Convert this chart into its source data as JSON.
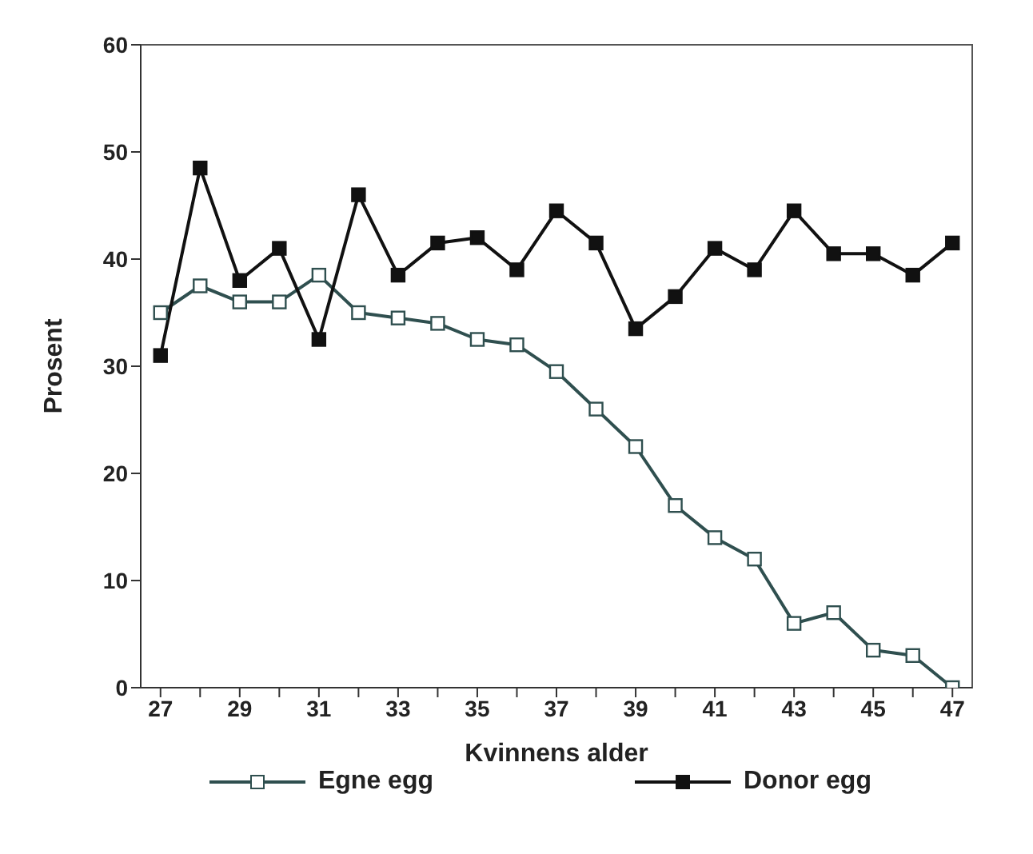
{
  "chart_data": {
    "type": "line",
    "xlabel": "Kvinnens alder",
    "ylabel": "Prosent",
    "x": [
      27,
      28,
      29,
      30,
      31,
      32,
      33,
      34,
      35,
      36,
      37,
      38,
      39,
      40,
      41,
      42,
      43,
      44,
      45,
      46,
      47
    ],
    "series": [
      {
        "name": "Egne egg",
        "color": "#2f4f4f",
        "values": [
          35,
          37.5,
          36,
          36,
          38.5,
          35,
          34.5,
          34,
          32.5,
          32,
          29.5,
          26,
          22.5,
          17,
          14,
          12,
          6,
          7,
          3.5,
          3,
          0
        ]
      },
      {
        "name": "Donor egg",
        "color": "#111111",
        "values": [
          31,
          48.5,
          38,
          41,
          32.5,
          46,
          38.5,
          41.5,
          42,
          39,
          44.5,
          41.5,
          33.5,
          36.5,
          41,
          39,
          44.5,
          40.5,
          40.5,
          38.5,
          41.5
        ]
      }
    ],
    "xlim": [
      26.5,
      47.5
    ],
    "xticks": [
      27,
      {
        "value": 28,
        "label": null
      },
      29,
      {
        "value": 30,
        "label": null
      },
      31,
      {
        "value": 32,
        "label": null
      },
      33,
      {
        "value": 34,
        "label": null
      },
      35,
      {
        "value": 36,
        "label": null
      },
      37,
      {
        "value": 38,
        "label": null
      },
      39,
      {
        "value": 40,
        "label": null
      },
      41,
      {
        "value": 42,
        "label": null
      },
      43,
      {
        "value": 44,
        "label": null
      },
      45,
      {
        "value": 46,
        "label": null
      },
      47
    ],
    "ylim": [
      0,
      60
    ],
    "yticks": [
      0,
      10,
      20,
      30,
      40,
      50,
      60
    ],
    "grid": false,
    "legend": "bottom",
    "marker": "square",
    "line_style": "solid"
  }
}
